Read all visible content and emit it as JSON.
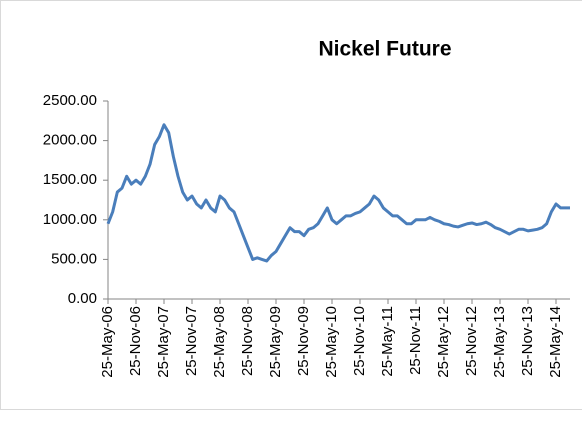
{
  "chart_data": {
    "type": "line",
    "title": "Nickel Future",
    "categories": [
      "25-May-06",
      null,
      null,
      null,
      null,
      null,
      "25-Nov-06",
      null,
      null,
      null,
      null,
      null,
      "25-May-07",
      null,
      null,
      null,
      null,
      null,
      "25-Nov-07",
      null,
      null,
      null,
      null,
      null,
      "25-May-08",
      null,
      null,
      null,
      null,
      null,
      "25-Nov-08",
      null,
      null,
      null,
      null,
      null,
      "25-May-09",
      null,
      null,
      null,
      null,
      null,
      "25-Nov-09",
      null,
      null,
      null,
      null,
      null,
      "25-May-10",
      null,
      null,
      null,
      null,
      null,
      "25-Nov-10",
      null,
      null,
      null,
      null,
      null,
      "25-May-11",
      null,
      null,
      null,
      null,
      null,
      "25-Nov-11",
      null,
      null,
      null,
      null,
      null,
      "25-May-12",
      null,
      null,
      null,
      null,
      null,
      "25-Nov-12",
      null,
      null,
      null,
      null,
      null,
      "25-May-13",
      null,
      null,
      null,
      null,
      null,
      "25-Nov-13",
      null,
      null,
      null,
      null,
      null,
      "25-May-14",
      null,
      null,
      null
    ],
    "series": [
      {
        "color": "#4a7ebb",
        "values": [
          950,
          1100,
          1350,
          1400,
          1550,
          1450,
          1500,
          1450,
          1550,
          1700,
          1950,
          2050,
          2200,
          2100,
          1800,
          1550,
          1350,
          1250,
          1300,
          1200,
          1150,
          1250,
          1150,
          1100,
          1300,
          1250,
          1150,
          1100,
          950,
          800,
          650,
          500,
          520,
          500,
          480,
          550,
          600,
          700,
          800,
          900,
          850,
          850,
          800,
          880,
          900,
          950,
          1050,
          1150,
          1000,
          950,
          1000,
          1050,
          1050,
          1080,
          1100,
          1150,
          1200,
          1300,
          1250,
          1150,
          1100,
          1050,
          1050,
          1000,
          950,
          950,
          1000,
          1000,
          1000,
          1030,
          1000,
          980,
          950,
          940,
          920,
          910,
          930,
          950,
          960,
          940,
          950,
          970,
          940,
          900,
          880,
          850,
          820,
          850,
          880,
          880,
          860,
          870,
          880,
          900,
          950,
          1100,
          1200,
          1150,
          1150,
          1150
        ]
      }
    ],
    "ylim": [
      0,
      2500
    ],
    "yticks": [
      {
        "value": 0,
        "label": "0.00"
      },
      {
        "value": 500,
        "label": "500.00"
      },
      {
        "value": 1000,
        "label": "1000.00"
      },
      {
        "value": 1500,
        "label": "1500.00"
      },
      {
        "value": 2000,
        "label": "2000.00"
      },
      {
        "value": 2500,
        "label": "2500.00"
      }
    ]
  }
}
